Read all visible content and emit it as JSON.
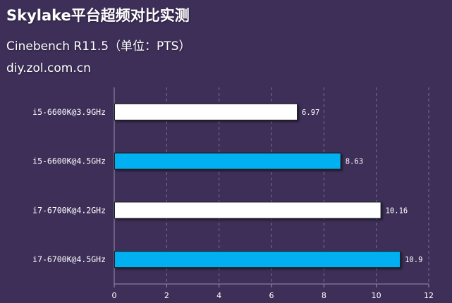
{
  "header": {
    "title": "Skylake平台超频对比实测",
    "subtitle": "Cinebench R11.5（单位：PTS）",
    "source": "diy.zol.com.cn"
  },
  "colors": {
    "background": "#3d2f58",
    "bar_white": "#ffffff",
    "bar_blue": "#00b0f0",
    "text": "#ffffff"
  },
  "chart_data": {
    "type": "bar",
    "orientation": "horizontal",
    "title": "Skylake平台超频对比实测",
    "subtitle": "Cinebench R11.5（单位：PTS）",
    "categories": [
      "i5-6600K@3.9GHz",
      "i5-6600K@4.5GHz",
      "i7-6700K@4.2GHz",
      "i7-6700K@4.5GHz"
    ],
    "values": [
      6.97,
      8.63,
      10.16,
      10.9
    ],
    "value_labels": [
      "6.97",
      "8.63",
      "10.16",
      "10.9"
    ],
    "bar_colors": [
      "#ffffff",
      "#00b0f0",
      "#ffffff",
      "#00b0f0"
    ],
    "xlim": [
      0,
      12
    ],
    "xticks": [
      0,
      2,
      4,
      6,
      8,
      10,
      12
    ],
    "xlabel": "",
    "ylabel": "",
    "grid": "vertical dashed",
    "legend": "none"
  }
}
